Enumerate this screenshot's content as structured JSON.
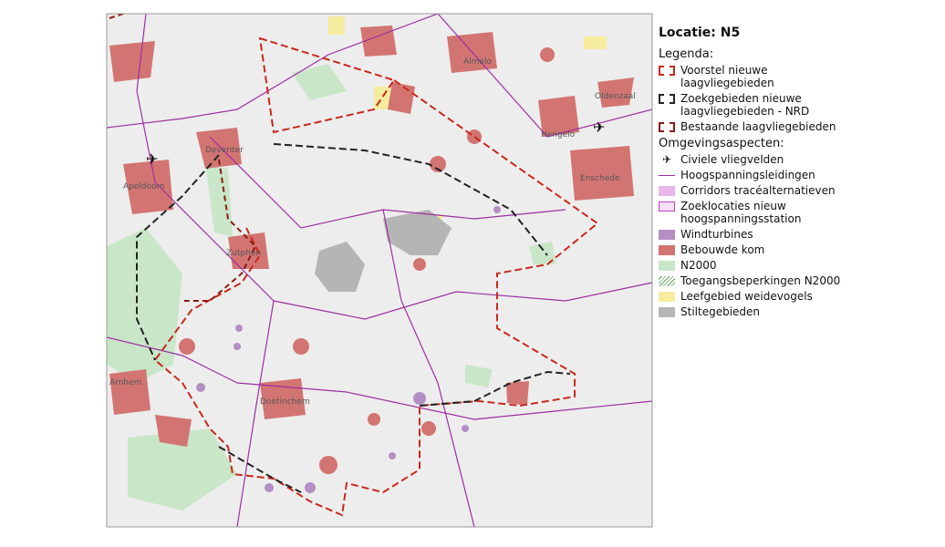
{
  "title": "Locatie: N5",
  "legend_title": "Legenda:",
  "legend_items": [
    "Voorstel nieuwe\nlaagvliegebieden",
    "Zoekgebieden nieuwe\nlaagvliegebieden - NRD",
    "Bestaande laagvliegebieden"
  ],
  "aspects_title": "Omgevingsaspecten:",
  "aspects": [
    "Civiele vliegvelden",
    "Hoogspanningsleidingen",
    "Corridors tracéalternatieven",
    "Zoeklocaties nieuw\nhoogspanningsstation",
    "Windturbines",
    "Bebouwde kom",
    "N2000",
    "Toegangsbeperkingen N2000",
    "Leefgebied weidevogels",
    "Stiltegebieden"
  ],
  "places": [
    "Almelo",
    "Oldenzaal",
    "Hengelo",
    "Enschede",
    "Deventer",
    "Apeldoorn",
    "Zutphen",
    "Arnhem",
    "Doetinchem"
  ]
}
